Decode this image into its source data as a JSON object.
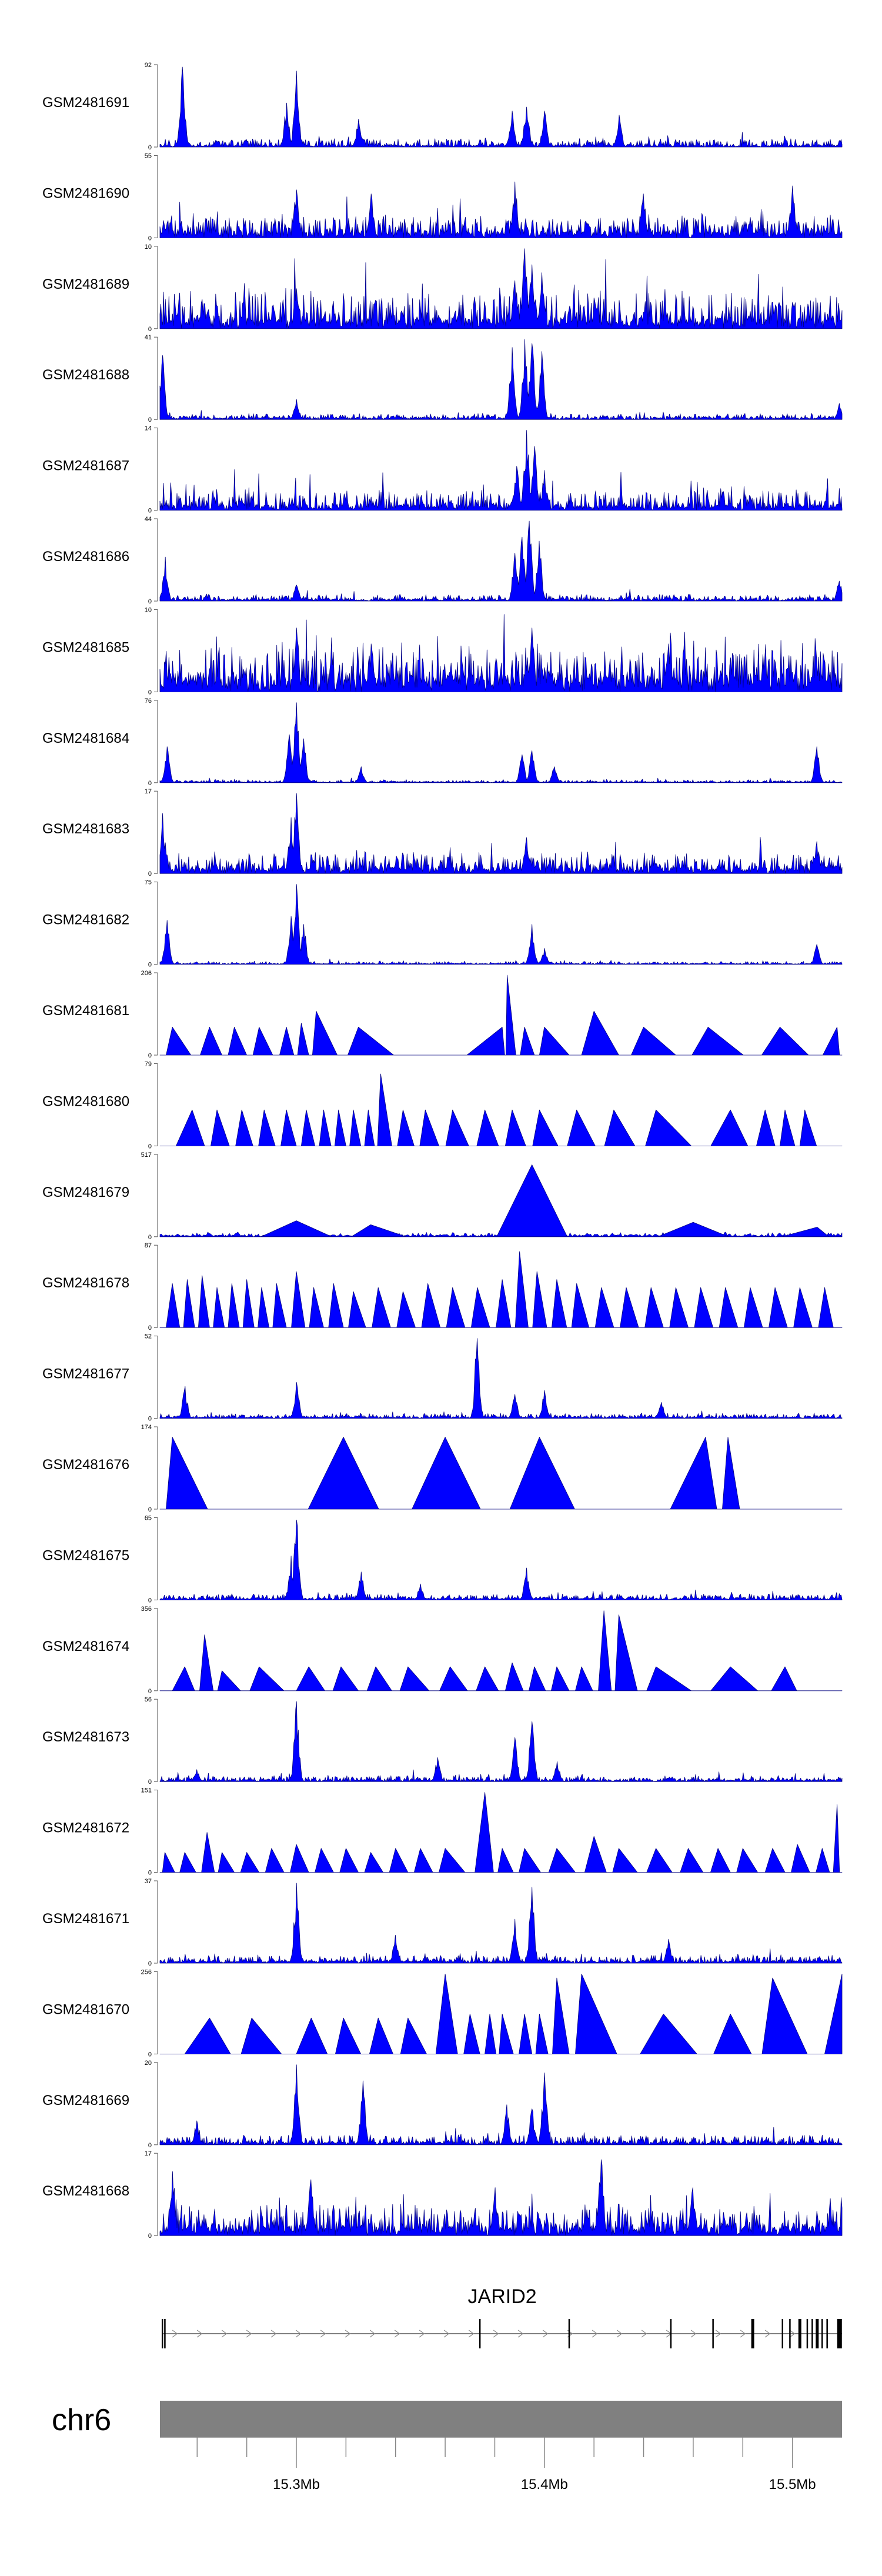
{
  "chart_data": {
    "type": "area",
    "title": "",
    "xlabel": "",
    "ylabel": "",
    "xlim_mb": [
      15.245,
      15.52
    ],
    "fill_color": "#0000ff",
    "edge_color": "#00007f",
    "tracks": [
      {
        "name": "GSM2481691",
        "ymax": 92,
        "style": "dense",
        "bg": 2,
        "noise": 9,
        "peaks": [
          [
            15.254,
            1
          ],
          [
            15.3,
            0.95
          ],
          [
            15.296,
            0.55
          ],
          [
            15.325,
            0.35
          ],
          [
            15.387,
            0.45
          ],
          [
            15.393,
            0.5
          ],
          [
            15.4,
            0.45
          ],
          [
            15.43,
            0.4
          ]
        ]
      },
      {
        "name": "GSM2481690",
        "ymax": 55,
        "style": "dense",
        "bg": 8,
        "noise": 22,
        "peaks": [
          [
            15.3,
            0.6
          ],
          [
            15.33,
            0.55
          ],
          [
            15.388,
            0.7
          ],
          [
            15.44,
            0.55
          ],
          [
            15.5,
            0.65
          ]
        ]
      },
      {
        "name": "GSM2481689",
        "ymax": 10,
        "style": "dense",
        "bg": 12,
        "noise": 40,
        "peaks": [
          [
            15.392,
            1
          ],
          [
            15.395,
            0.8
          ],
          [
            15.399,
            0.7
          ],
          [
            15.388,
            0.6
          ],
          [
            15.3,
            0.5
          ]
        ]
      },
      {
        "name": "GSM2481688",
        "ymax": 41,
        "style": "dense",
        "bg": 2,
        "noise": 6,
        "peaks": [
          [
            15.387,
            0.9
          ],
          [
            15.392,
            1
          ],
          [
            15.395,
            0.95
          ],
          [
            15.399,
            0.85
          ],
          [
            15.246,
            0.8
          ],
          [
            15.3,
            0.25
          ],
          [
            15.519,
            0.2
          ]
        ]
      },
      {
        "name": "GSM2481687",
        "ymax": 14,
        "style": "dense",
        "bg": 6,
        "noise": 22,
        "peaks": [
          [
            15.393,
            1
          ],
          [
            15.396,
            0.8
          ],
          [
            15.389,
            0.55
          ],
          [
            15.4,
            0.5
          ]
        ]
      },
      {
        "name": "GSM2481686",
        "ymax": 44,
        "style": "dense",
        "bg": 2,
        "noise": 7,
        "peaks": [
          [
            15.394,
            1
          ],
          [
            15.391,
            0.8
          ],
          [
            15.398,
            0.75
          ],
          [
            15.388,
            0.6
          ],
          [
            15.247,
            0.55
          ],
          [
            15.3,
            0.2
          ],
          [
            15.519,
            0.25
          ]
        ]
      },
      {
        "name": "GSM2481685",
        "ymax": 10,
        "style": "dense",
        "bg": 20,
        "noise": 45,
        "peaks": [
          [
            15.3,
            0.8
          ],
          [
            15.395,
            0.8
          ],
          [
            15.33,
            0.6
          ],
          [
            15.45,
            0.6
          ]
        ]
      },
      {
        "name": "GSM2481684",
        "ymax": 76,
        "style": "dense",
        "bg": 1,
        "noise": 3,
        "peaks": [
          [
            15.3,
            1
          ],
          [
            15.297,
            0.6
          ],
          [
            15.303,
            0.55
          ],
          [
            15.248,
            0.45
          ],
          [
            15.326,
            0.2
          ],
          [
            15.395,
            0.4
          ],
          [
            15.391,
            0.35
          ],
          [
            15.404,
            0.2
          ],
          [
            15.51,
            0.45
          ]
        ]
      },
      {
        "name": "GSM2481683",
        "ymax": 17,
        "style": "dense",
        "bg": 8,
        "noise": 20,
        "peaks": [
          [
            15.3,
            1
          ],
          [
            15.298,
            0.7
          ],
          [
            15.246,
            0.75
          ],
          [
            15.393,
            0.45
          ],
          [
            15.51,
            0.4
          ]
        ]
      },
      {
        "name": "GSM2481682",
        "ymax": 75,
        "style": "dense",
        "bg": 1,
        "noise": 3,
        "peaks": [
          [
            15.3,
            1
          ],
          [
            15.298,
            0.6
          ],
          [
            15.303,
            0.5
          ],
          [
            15.248,
            0.55
          ],
          [
            15.395,
            0.5
          ],
          [
            15.4,
            0.2
          ],
          [
            15.51,
            0.25
          ]
        ]
      },
      {
        "name": "GSM2481681",
        "ymax": 206,
        "style": "sparse",
        "bg": 0,
        "noise": 0,
        "peaks": [
          [
            15.25,
            0.35
          ],
          [
            15.265,
            0.35
          ],
          [
            15.275,
            0.35
          ],
          [
            15.285,
            0.35
          ],
          [
            15.296,
            0.35
          ],
          [
            15.302,
            0.4
          ],
          [
            15.308,
            0.55
          ],
          [
            15.325,
            0.35
          ],
          [
            15.383,
            0.35
          ],
          [
            15.385,
            1
          ],
          [
            15.392,
            0.35
          ],
          [
            15.4,
            0.35
          ],
          [
            15.42,
            0.55
          ],
          [
            15.44,
            0.35
          ],
          [
            15.466,
            0.35
          ],
          [
            15.495,
            0.35
          ],
          [
            15.518,
            0.35
          ]
        ]
      },
      {
        "name": "GSM2481680",
        "ymax": 79,
        "style": "sparse",
        "bg": 0,
        "noise": 0,
        "peaks": [
          [
            15.258,
            0.45
          ],
          [
            15.268,
            0.45
          ],
          [
            15.278,
            0.45
          ],
          [
            15.287,
            0.45
          ],
          [
            15.296,
            0.45
          ],
          [
            15.304,
            0.45
          ],
          [
            15.311,
            0.45
          ],
          [
            15.317,
            0.45
          ],
          [
            15.323,
            0.45
          ],
          [
            15.329,
            0.45
          ],
          [
            15.334,
            0.9
          ],
          [
            15.343,
            0.45
          ],
          [
            15.352,
            0.45
          ],
          [
            15.363,
            0.45
          ],
          [
            15.376,
            0.45
          ],
          [
            15.387,
            0.45
          ],
          [
            15.398,
            0.45
          ],
          [
            15.413,
            0.45
          ],
          [
            15.428,
            0.45
          ],
          [
            15.445,
            0.45
          ],
          [
            15.475,
            0.45
          ],
          [
            15.489,
            0.45
          ],
          [
            15.497,
            0.45
          ],
          [
            15.505,
            0.45
          ]
        ]
      },
      {
        "name": "GSM2481679",
        "ymax": 517,
        "style": "sparse",
        "bg": 2,
        "noise": 4,
        "peaks": [
          [
            15.395,
            0.9
          ],
          [
            15.3,
            0.2
          ],
          [
            15.33,
            0.15
          ],
          [
            15.46,
            0.18
          ],
          [
            15.51,
            0.12
          ]
        ]
      },
      {
        "name": "GSM2481678",
        "ymax": 87,
        "style": "sparse",
        "bg": 0,
        "noise": 0,
        "peaks": [
          [
            15.25,
            0.55
          ],
          [
            15.256,
            0.6
          ],
          [
            15.262,
            0.65
          ],
          [
            15.268,
            0.5
          ],
          [
            15.274,
            0.55
          ],
          [
            15.28,
            0.6
          ],
          [
            15.286,
            0.5
          ],
          [
            15.292,
            0.55
          ],
          [
            15.3,
            0.7
          ],
          [
            15.307,
            0.5
          ],
          [
            15.315,
            0.55
          ],
          [
            15.323,
            0.45
          ],
          [
            15.333,
            0.5
          ],
          [
            15.343,
            0.45
          ],
          [
            15.353,
            0.55
          ],
          [
            15.363,
            0.5
          ],
          [
            15.373,
            0.5
          ],
          [
            15.383,
            0.6
          ],
          [
            15.39,
            0.95
          ],
          [
            15.397,
            0.7
          ],
          [
            15.405,
            0.6
          ],
          [
            15.413,
            0.55
          ],
          [
            15.423,
            0.5
          ],
          [
            15.433,
            0.5
          ],
          [
            15.443,
            0.5
          ],
          [
            15.453,
            0.5
          ],
          [
            15.463,
            0.5
          ],
          [
            15.473,
            0.5
          ],
          [
            15.483,
            0.5
          ],
          [
            15.493,
            0.5
          ],
          [
            15.503,
            0.5
          ],
          [
            15.513,
            0.5
          ]
        ]
      },
      {
        "name": "GSM2481677",
        "ymax": 52,
        "style": "dense",
        "bg": 2,
        "noise": 5,
        "peaks": [
          [
            15.373,
            1
          ],
          [
            15.3,
            0.45
          ],
          [
            15.255,
            0.4
          ],
          [
            15.4,
            0.35
          ],
          [
            15.388,
            0.3
          ],
          [
            15.447,
            0.2
          ]
        ]
      },
      {
        "name": "GSM2481676",
        "ymax": 174,
        "style": "sparse",
        "bg": 0,
        "noise": 0,
        "peaks": [
          [
            15.25,
            0.9
          ],
          [
            15.319,
            0.9
          ],
          [
            15.36,
            0.9
          ],
          [
            15.398,
            0.9
          ],
          [
            15.465,
            0.9
          ],
          [
            15.474,
            0.9
          ]
        ]
      },
      {
        "name": "GSM2481675",
        "ymax": 65,
        "style": "dense",
        "bg": 2,
        "noise": 6,
        "peaks": [
          [
            15.3,
            1
          ],
          [
            15.298,
            0.55
          ],
          [
            15.326,
            0.35
          ],
          [
            15.393,
            0.4
          ],
          [
            15.35,
            0.2
          ]
        ]
      },
      {
        "name": "GSM2481674",
        "ymax": 356,
        "style": "sparse",
        "bg": 0,
        "noise": 0,
        "peaks": [
          [
            15.255,
            0.3
          ],
          [
            15.263,
            0.7
          ],
          [
            15.27,
            0.25
          ],
          [
            15.285,
            0.3
          ],
          [
            15.305,
            0.3
          ],
          [
            15.318,
            0.3
          ],
          [
            15.332,
            0.3
          ],
          [
            15.345,
            0.3
          ],
          [
            15.362,
            0.3
          ],
          [
            15.376,
            0.3
          ],
          [
            15.387,
            0.35
          ],
          [
            15.396,
            0.3
          ],
          [
            15.405,
            0.3
          ],
          [
            15.415,
            0.3
          ],
          [
            15.424,
            1
          ],
          [
            15.43,
            0.95
          ],
          [
            15.445,
            0.3
          ],
          [
            15.475,
            0.3
          ],
          [
            15.497,
            0.3
          ]
        ]
      },
      {
        "name": "GSM2481673",
        "ymax": 56,
        "style": "dense",
        "bg": 2,
        "noise": 6,
        "peaks": [
          [
            15.3,
            1
          ],
          [
            15.395,
            0.75
          ],
          [
            15.388,
            0.55
          ],
          [
            15.357,
            0.3
          ],
          [
            15.405,
            0.25
          ],
          [
            15.26,
            0.15
          ]
        ]
      },
      {
        "name": "GSM2481672",
        "ymax": 151,
        "style": "sparse",
        "bg": 0,
        "noise": 0,
        "peaks": [
          [
            15.247,
            0.25
          ],
          [
            15.255,
            0.25
          ],
          [
            15.264,
            0.5
          ],
          [
            15.27,
            0.25
          ],
          [
            15.28,
            0.25
          ],
          [
            15.29,
            0.3
          ],
          [
            15.3,
            0.35
          ],
          [
            15.31,
            0.3
          ],
          [
            15.32,
            0.3
          ],
          [
            15.33,
            0.25
          ],
          [
            15.34,
            0.3
          ],
          [
            15.35,
            0.3
          ],
          [
            15.36,
            0.3
          ],
          [
            15.376,
            1
          ],
          [
            15.383,
            0.3
          ],
          [
            15.392,
            0.3
          ],
          [
            15.405,
            0.3
          ],
          [
            15.42,
            0.45
          ],
          [
            15.43,
            0.3
          ],
          [
            15.445,
            0.3
          ],
          [
            15.458,
            0.3
          ],
          [
            15.47,
            0.3
          ],
          [
            15.48,
            0.3
          ],
          [
            15.492,
            0.3
          ],
          [
            15.502,
            0.35
          ],
          [
            15.512,
            0.3
          ],
          [
            15.518,
            0.85
          ]
        ]
      },
      {
        "name": "GSM2481671",
        "ymax": 37,
        "style": "dense",
        "bg": 3,
        "noise": 8,
        "peaks": [
          [
            15.3,
            1
          ],
          [
            15.395,
            0.95
          ],
          [
            15.388,
            0.55
          ],
          [
            15.34,
            0.35
          ],
          [
            15.45,
            0.3
          ]
        ]
      },
      {
        "name": "GSM2481670",
        "ymax": 256,
        "style": "sparse",
        "bg": 0,
        "noise": 0,
        "peaks": [
          [
            15.265,
            0.45
          ],
          [
            15.282,
            0.45
          ],
          [
            15.306,
            0.45
          ],
          [
            15.319,
            0.45
          ],
          [
            15.333,
            0.45
          ],
          [
            15.345,
            0.45
          ],
          [
            15.36,
            1
          ],
          [
            15.37,
            0.5
          ],
          [
            15.378,
            0.5
          ],
          [
            15.383,
            0.5
          ],
          [
            15.392,
            0.5
          ],
          [
            15.398,
            0.5
          ],
          [
            15.405,
            0.95
          ],
          [
            15.415,
            1
          ],
          [
            15.448,
            0.5
          ],
          [
            15.475,
            0.5
          ],
          [
            15.492,
            0.95
          ],
          [
            15.52,
            1
          ]
        ]
      },
      {
        "name": "GSM2481669",
        "ymax": 20,
        "style": "dense",
        "bg": 3,
        "noise": 10,
        "peaks": [
          [
            15.3,
            1
          ],
          [
            15.327,
            0.8
          ],
          [
            15.385,
            0.5
          ],
          [
            15.395,
            0.45
          ],
          [
            15.4,
            0.9
          ],
          [
            15.26,
            0.3
          ]
        ]
      },
      {
        "name": "GSM2481668",
        "ymax": 17,
        "style": "dense",
        "bg": 12,
        "noise": 30,
        "peaks": [
          [
            15.423,
            0.95
          ],
          [
            15.25,
            0.8
          ],
          [
            15.306,
            0.7
          ],
          [
            15.38,
            0.6
          ],
          [
            15.46,
            0.6
          ]
        ]
      }
    ]
  },
  "gene": {
    "name": "JARID2",
    "start_mb": 15.246,
    "end_mb": 15.52,
    "strand": "+",
    "exons_mb": [
      15.246,
      15.247,
      15.374,
      15.41,
      15.451,
      15.468,
      15.484,
      15.496,
      15.499,
      15.503,
      15.506,
      15.508,
      15.51,
      15.512,
      15.514,
      15.519
    ]
  },
  "ideogram": {
    "chromosome": "chr6",
    "color": "#808080",
    "ticks_mb": [
      15.3,
      15.4,
      15.5
    ],
    "tick_labels": [
      "15.3Mb",
      "15.4Mb",
      "15.5Mb"
    ],
    "minor_ticks_mb": [
      15.26,
      15.28,
      15.32,
      15.34,
      15.36,
      15.38,
      15.42,
      15.44,
      15.46,
      15.48
    ]
  }
}
